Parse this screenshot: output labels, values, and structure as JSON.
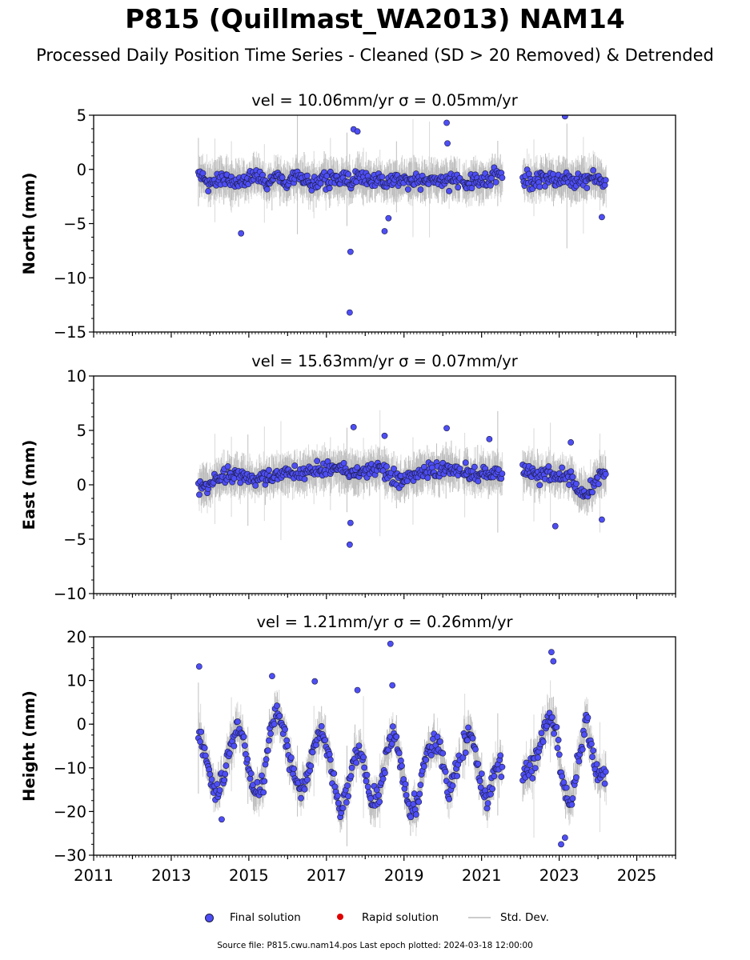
{
  "title": "P815 (Quillmast_WA2013) NAM14",
  "subtitle": "Processed Daily Position Time Series - Cleaned (SD > 20 Removed) & Detrended",
  "legend": {
    "final": "Final solution",
    "rapid": "Rapid solution",
    "std": "Std. Dev."
  },
  "footer": "Source file: P815.cwu.nam14.pos  Last epoch plotted: 2024-03-18 12:00:00",
  "colors": {
    "final_fill": "#4e4ef5",
    "final_edge": "#1a1a40",
    "rapid_fill": "#e00000",
    "std_line": "#bbbbbb"
  },
  "chart_data": [
    {
      "type": "scatter",
      "panel": "north",
      "title": "vel = 10.06mm/yr   σ = 0.05mm/yr",
      "ylabel": "North (mm)",
      "ylim": [
        -15,
        5
      ],
      "yticks": [
        5,
        0,
        -5,
        -10,
        -15
      ],
      "xlim": [
        2011,
        2026
      ],
      "xticks": [
        2011,
        2013,
        2015,
        2017,
        2019,
        2021,
        2023,
        2025
      ],
      "show_xticklabels": false,
      "series": [
        {
          "x": [
            2013.75,
            2013.95,
            2014.15,
            2014.35,
            2014.55,
            2014.75,
            2014.95,
            2015.15,
            2015.35,
            2015.55,
            2015.75,
            2015.95,
            2016.15,
            2016.35,
            2016.55,
            2016.75,
            2016.95,
            2017.15,
            2017.35,
            2017.55,
            2017.65,
            2017.75,
            2017.95,
            2018.15,
            2018.35,
            2018.55,
            2018.75,
            2018.95,
            2019.15,
            2019.35,
            2019.55,
            2019.75,
            2019.95,
            2020.15,
            2020.55,
            2020.75,
            2020.95,
            2021.15,
            2021.35,
            2022.1,
            2022.3,
            2022.5,
            2022.7,
            2022.9,
            2023.1,
            2023.3,
            2023.5,
            2023.7,
            2023.9,
            2024.1
          ],
          "y": [
            -0.5,
            -1.2,
            -1.0,
            -0.8,
            -1.3,
            -0.9,
            -1.1,
            -0.6,
            -1.0,
            -1.4,
            -0.7,
            -1.2,
            -1.0,
            -0.8,
            -1.3,
            -1.1,
            -0.9,
            -1.0,
            -1.2,
            -0.8,
            -1.5,
            -0.7,
            -1.0,
            -1.1,
            -0.9,
            -1.3,
            -0.8,
            -1.0,
            -1.2,
            -0.9,
            -1.1,
            -0.8,
            -1.0,
            -0.9,
            -1.4,
            -1.0,
            -1.2,
            -1.1,
            -0.6,
            -0.9,
            -1.2,
            -1.0,
            -0.7,
            -1.1,
            -0.9,
            -1.3,
            -0.8,
            -1.0,
            -0.7,
            -1.1
          ]
        }
      ],
      "outliers": {
        "x": [
          2014.8,
          2017.6,
          2017.62,
          2017.7,
          2017.8,
          2018.5,
          2018.6,
          2020.1,
          2020.12,
          2023.15,
          2024.1
        ],
        "y": [
          -5.9,
          -13.2,
          -7.6,
          3.7,
          3.5,
          -5.7,
          -4.5,
          4.3,
          2.4,
          4.9,
          -4.4
        ]
      }
    },
    {
      "type": "scatter",
      "panel": "east",
      "title": "vel = 15.63mm/yr   σ = 0.07mm/yr",
      "ylabel": "East (mm)",
      "ylim": [
        -10,
        10
      ],
      "yticks": [
        10,
        5,
        0,
        -5,
        -10
      ],
      "xlim": [
        2011,
        2026
      ],
      "xticks": [
        2011,
        2013,
        2015,
        2017,
        2019,
        2021,
        2023,
        2025
      ],
      "show_xticklabels": false,
      "series": [
        {
          "x": [
            2013.75,
            2013.95,
            2014.15,
            2014.35,
            2014.55,
            2014.75,
            2014.95,
            2015.15,
            2015.35,
            2015.55,
            2015.75,
            2015.95,
            2016.15,
            2016.35,
            2016.55,
            2016.75,
            2016.95,
            2017.15,
            2017.35,
            2017.55,
            2017.75,
            2017.95,
            2018.15,
            2018.35,
            2018.55,
            2018.75,
            2018.95,
            2019.15,
            2019.35,
            2019.55,
            2019.75,
            2019.95,
            2020.15,
            2020.55,
            2020.75,
            2020.95,
            2021.15,
            2021.35,
            2022.1,
            2022.3,
            2022.5,
            2022.7,
            2022.9,
            2023.1,
            2023.3,
            2023.5,
            2023.7,
            2023.9,
            2024.1
          ],
          "y": [
            -0.2,
            0.0,
            0.4,
            0.8,
            0.9,
            0.7,
            0.6,
            0.5,
            0.6,
            0.7,
            0.9,
            1.0,
            1.1,
            1.0,
            1.2,
            1.3,
            1.5,
            1.4,
            1.6,
            1.2,
            1.0,
            1.3,
            1.5,
            1.4,
            1.2,
            0.5,
            0.3,
            0.8,
            1.0,
            1.2,
            1.1,
            1.3,
            1.5,
            1.1,
            0.9,
            1.2,
            1.0,
            1.1,
            1.2,
            1.0,
            0.8,
            1.1,
            0.9,
            1.0,
            0.6,
            -0.5,
            -0.8,
            0.2,
            0.8
          ]
        }
      ],
      "outliers": {
        "x": [
          2017.6,
          2017.62,
          2017.7,
          2018.5,
          2020.1,
          2021.2,
          2022.9,
          2023.3,
          2024.1
        ],
        "y": [
          -5.5,
          -3.5,
          5.3,
          4.5,
          5.2,
          4.2,
          -3.8,
          3.9,
          -3.2
        ]
      }
    },
    {
      "type": "scatter",
      "panel": "height",
      "title": "vel = 1.21mm/yr   σ = 0.26mm/yr",
      "ylabel": "Height (mm)",
      "ylim": [
        -30,
        20
      ],
      "yticks": [
        20,
        10,
        0,
        -10,
        -20,
        -30
      ],
      "xlim": [
        2011,
        2026
      ],
      "xticks": [
        2011,
        2013,
        2015,
        2017,
        2019,
        2021,
        2023,
        2025
      ],
      "show_xticklabels": true,
      "series": [
        {
          "x": [
            2013.75,
            2013.95,
            2014.15,
            2014.35,
            2014.55,
            2014.75,
            2014.95,
            2015.15,
            2015.35,
            2015.55,
            2015.75,
            2015.95,
            2016.15,
            2016.35,
            2016.55,
            2016.75,
            2016.95,
            2017.15,
            2017.35,
            2017.55,
            2017.75,
            2017.95,
            2018.15,
            2018.35,
            2018.55,
            2018.75,
            2018.95,
            2019.15,
            2019.35,
            2019.55,
            2019.75,
            2019.95,
            2020.15,
            2020.55,
            2020.75,
            2020.95,
            2021.15,
            2021.35,
            2022.1,
            2022.3,
            2022.5,
            2022.7,
            2022.9,
            2023.1,
            2023.3,
            2023.5,
            2023.7,
            2023.9,
            2024.1
          ],
          "y": [
            -2,
            -10,
            -16,
            -12,
            -4,
            0,
            -8,
            -16,
            -14,
            -2,
            3,
            -4,
            -12,
            -16,
            -10,
            -3,
            -2,
            -12,
            -20,
            -16,
            -6,
            -8,
            -18,
            -16,
            -6,
            -2,
            -10,
            -20,
            -18,
            -8,
            -4,
            -6,
            -16,
            -4,
            -2,
            -12,
            -18,
            -10,
            -12,
            -10,
            -6,
            2,
            0,
            -14,
            -18,
            -8,
            2,
            -10,
            -12
          ]
        }
      ],
      "outliers": {
        "x": [
          2013.72,
          2014.3,
          2015.6,
          2016.7,
          2017.8,
          2018.65,
          2018.7,
          2022.8,
          2022.85,
          2023.05,
          2023.15
        ],
        "y": [
          13.2,
          -21.8,
          11.0,
          9.8,
          7.8,
          18.4,
          8.9,
          16.5,
          14.4,
          -27.5,
          -26.0
        ]
      }
    }
  ]
}
